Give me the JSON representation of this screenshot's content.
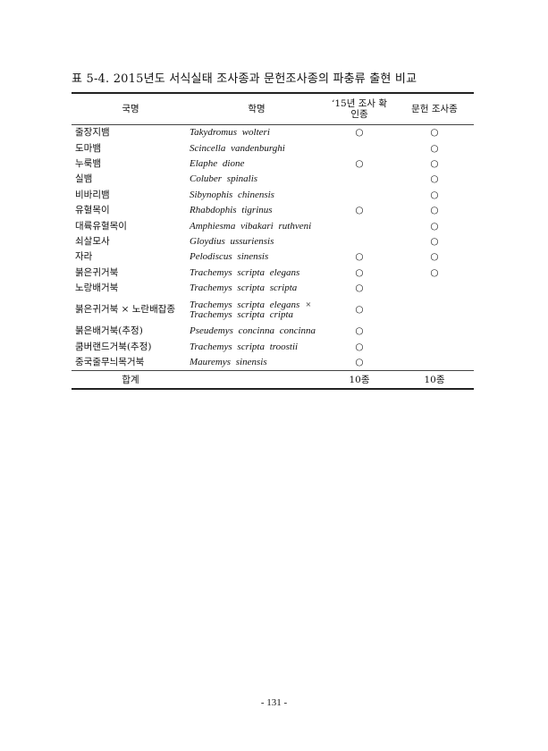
{
  "title": "표 5-4. 2015년도 서식실태 조사종과 문헌조사종의 파충류 출현 비교",
  "table": {
    "headers": [
      "국명",
      "학명",
      "‘15년 조사 확인종",
      "문헌 조사종"
    ],
    "rows": [
      {
        "korean": "줄장지뱀",
        "scientific": "Takydromus wolteri",
        "survey": "○",
        "literature": "○"
      },
      {
        "korean": "도마뱀",
        "scientific": "Scincella vandenburghi",
        "survey": "",
        "literature": "○"
      },
      {
        "korean": "누룩뱀",
        "scientific": "Elaphe dione",
        "survey": "○",
        "literature": "○"
      },
      {
        "korean": "실뱀",
        "scientific": "Coluber spinalis",
        "survey": "",
        "literature": "○"
      },
      {
        "korean": "비바리뱀",
        "scientific": "Sibynophis chinensis",
        "survey": "",
        "literature": "○"
      },
      {
        "korean": "유혈목이",
        "scientific": "Rhabdophis tigrinus",
        "survey": "○",
        "literature": "○"
      },
      {
        "korean": "대륙유혈목이",
        "scientific": "Amphiesma vibakari ruthveni",
        "survey": "",
        "literature": "○"
      },
      {
        "korean": "쇠살모사",
        "scientific": "Gloydius ussuriensis",
        "survey": "",
        "literature": "○"
      },
      {
        "korean": "자라",
        "scientific": "Pelodiscus sinensis",
        "survey": "○",
        "literature": "○"
      },
      {
        "korean": "붉은귀거북",
        "scientific": "Trachemys scripta elegans",
        "survey": "○",
        "literature": "○"
      },
      {
        "korean": "노랑배거북",
        "scientific": "Trachemys scripta scripta",
        "survey": "○",
        "literature": ""
      },
      {
        "korean": "붉은귀거북 × 노란배잡종",
        "scientific": "Trachemys scripta elegans × Trachemys scripta cripta",
        "survey": "○",
        "literature": ""
      },
      {
        "korean": "붉은배거북(추정)",
        "scientific": "Pseudemys concinna concinna",
        "survey": "○",
        "literature": ""
      },
      {
        "korean": "쿰버랜드거북(추정)",
        "scientific": "Trachemys scripta troostii",
        "survey": "○",
        "literature": ""
      },
      {
        "korean": "중국줄무늬목거북",
        "scientific": "Mauremys sinensis",
        "survey": "○",
        "literature": ""
      }
    ],
    "total": {
      "label": "합계",
      "survey": "10종",
      "literature": "10종"
    }
  },
  "page_number": "- 131 -"
}
